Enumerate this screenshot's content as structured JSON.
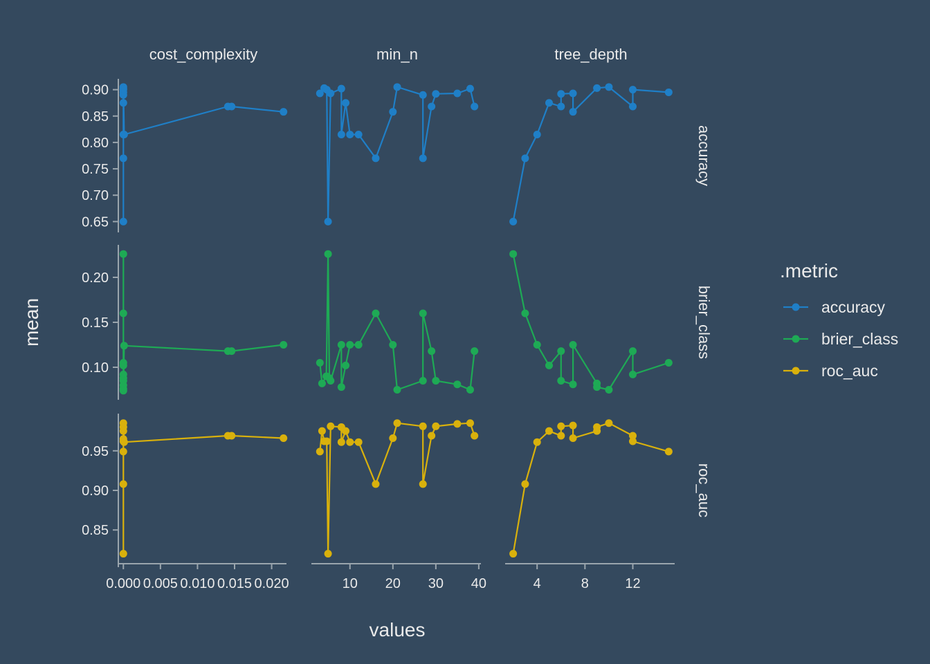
{
  "colors": {
    "background": "#34495e",
    "axis": "#9aa5ad",
    "text": "#eaeaea",
    "accuracy": "#1f7fc7",
    "brier_class": "#1eaa55",
    "roc_auc": "#d9b10c"
  },
  "chart_data": {
    "type": "line",
    "xlabel": "values",
    "ylabel": "mean",
    "legend": {
      "title": ".metric",
      "position": "right",
      "entries": [
        "accuracy",
        "brier_class",
        "roc_auc"
      ]
    },
    "columns": [
      {
        "name": "cost_complexity",
        "xlim": [
          -0.0004,
          0.022
        ],
        "ticks": [
          0,
          0.005,
          0.01,
          0.015,
          0.02
        ],
        "tick_labels": [
          "0.000",
          "0.005",
          "0.010",
          "0.015",
          "0.020"
        ]
      },
      {
        "name": "min_n",
        "xlim": [
          1.5,
          40.5
        ],
        "ticks": [
          10,
          20,
          30,
          40
        ],
        "tick_labels": [
          "10",
          "20",
          "30",
          "40"
        ]
      },
      {
        "name": "tree_depth",
        "xlim": [
          1.5,
          15.5
        ],
        "ticks": [
          4,
          8,
          12
        ],
        "tick_labels": [
          "4",
          "8",
          "12"
        ]
      }
    ],
    "rows": [
      {
        "name": "accuracy",
        "ylim": [
          0.64,
          0.91
        ],
        "ticks": [
          0.65,
          0.7,
          0.75,
          0.8,
          0.85,
          0.9
        ],
        "tick_labels": [
          "0.65",
          "0.70",
          "0.75",
          "0.80",
          "0.85",
          "0.90"
        ]
      },
      {
        "name": "brier_class",
        "ylim": [
          0.07,
          0.23
        ],
        "ticks": [
          0.1,
          0.15,
          0.2
        ],
        "tick_labels": [
          "0.10",
          "0.15",
          "0.20"
        ]
      },
      {
        "name": "roc_auc",
        "ylim": [
          0.81,
          0.99
        ],
        "ticks": [
          0.85,
          0.9,
          0.95
        ],
        "tick_labels": [
          "0.85",
          "0.90",
          "0.95"
        ]
      }
    ],
    "series": [
      {
        "name": "accuracy",
        "panels": [
          [
            [
              0,
              0.65
            ],
            [
              0,
              0.77
            ],
            [
              0,
              0.815
            ],
            [
              0,
              0.875
            ],
            [
              0,
              0.89
            ],
            [
              0,
              0.895
            ],
            [
              0,
              0.9
            ],
            [
              0,
              0.902
            ],
            [
              0,
              0.905
            ],
            [
              0.0001,
              0.815
            ],
            [
              0.0141,
              0.868
            ],
            [
              0.0146,
              0.868
            ],
            [
              0.0216,
              0.858
            ]
          ],
          [
            [
              3,
              0.893
            ],
            [
              4,
              0.903
            ],
            [
              4.6,
              0.9
            ],
            [
              4.9,
              0.65
            ],
            [
              5.5,
              0.893
            ],
            [
              8,
              0.902
            ],
            [
              8,
              0.815
            ],
            [
              9,
              0.875
            ],
            [
              10,
              0.815
            ],
            [
              12,
              0.815
            ],
            [
              16,
              0.77
            ],
            [
              20,
              0.858
            ],
            [
              21,
              0.905
            ],
            [
              27,
              0.89
            ],
            [
              27,
              0.77
            ],
            [
              29,
              0.868
            ],
            [
              30,
              0.892
            ],
            [
              35,
              0.893
            ],
            [
              38,
              0.902
            ],
            [
              39,
              0.868
            ]
          ],
          [
            [
              2,
              0.65
            ],
            [
              3,
              0.77
            ],
            [
              4,
              0.815
            ],
            [
              5,
              0.875
            ],
            [
              6,
              0.868
            ],
            [
              6,
              0.892
            ],
            [
              7,
              0.893
            ],
            [
              7,
              0.858
            ],
            [
              9,
              0.903
            ],
            [
              10,
              0.905
            ],
            [
              12,
              0.868
            ],
            [
              12,
              0.9
            ],
            [
              15,
              0.895
            ]
          ]
        ]
      },
      {
        "name": "brier_class",
        "panels": [
          [
            [
              0,
              0.226
            ],
            [
              0,
              0.16
            ],
            [
              0,
              0.105
            ],
            [
              0,
              0.102
            ],
            [
              0,
              0.092
            ],
            [
              0,
              0.088
            ],
            [
              0,
              0.085
            ],
            [
              0,
              0.08
            ],
            [
              0,
              0.076
            ],
            [
              0,
              0.074
            ],
            [
              0.0001,
              0.124
            ],
            [
              0.0141,
              0.118
            ],
            [
              0.0146,
              0.118
            ],
            [
              0.0216,
              0.125
            ]
          ],
          [
            [
              3,
              0.105
            ],
            [
              3.5,
              0.082
            ],
            [
              4.5,
              0.09
            ],
            [
              4.9,
              0.226
            ],
            [
              5.2,
              0.088
            ],
            [
              5.5,
              0.085
            ],
            [
              8,
              0.125
            ],
            [
              8,
              0.078
            ],
            [
              9,
              0.102
            ],
            [
              10,
              0.125
            ],
            [
              12,
              0.125
            ],
            [
              16,
              0.16
            ],
            [
              20,
              0.125
            ],
            [
              21,
              0.075
            ],
            [
              27,
              0.085
            ],
            [
              27,
              0.16
            ],
            [
              29,
              0.118
            ],
            [
              30,
              0.085
            ],
            [
              35,
              0.081
            ],
            [
              38,
              0.075
            ],
            [
              39,
              0.118
            ]
          ],
          [
            [
              2,
              0.226
            ],
            [
              3,
              0.16
            ],
            [
              4,
              0.125
            ],
            [
              5,
              0.102
            ],
            [
              6,
              0.118
            ],
            [
              6,
              0.085
            ],
            [
              7,
              0.081
            ],
            [
              7,
              0.125
            ],
            [
              9,
              0.082
            ],
            [
              9,
              0.078
            ],
            [
              10,
              0.075
            ],
            [
              12,
              0.118
            ],
            [
              12,
              0.092
            ],
            [
              15,
              0.105
            ]
          ]
        ]
      },
      {
        "name": "roc_auc",
        "panels": [
          [
            [
              0,
              0.82
            ],
            [
              0,
              0.908
            ],
            [
              0,
              0.949
            ],
            [
              0,
              0.962
            ],
            [
              0,
              0.965
            ],
            [
              0,
              0.975
            ],
            [
              0,
              0.98
            ],
            [
              0,
              0.985
            ],
            [
              0.0001,
              0.961
            ],
            [
              0.0141,
              0.969
            ],
            [
              0.0146,
              0.969
            ],
            [
              0.0216,
              0.966
            ]
          ],
          [
            [
              3,
              0.949
            ],
            [
              3.5,
              0.975
            ],
            [
              4,
              0.962
            ],
            [
              4.6,
              0.962
            ],
            [
              4.9,
              0.82
            ],
            [
              5.5,
              0.981
            ],
            [
              8,
              0.98
            ],
            [
              8,
              0.961
            ],
            [
              9,
              0.975
            ],
            [
              10,
              0.961
            ],
            [
              12,
              0.961
            ],
            [
              16,
              0.908
            ],
            [
              20,
              0.966
            ],
            [
              21,
              0.985
            ],
            [
              27,
              0.981
            ],
            [
              27,
              0.908
            ],
            [
              29,
              0.969
            ],
            [
              30,
              0.981
            ],
            [
              35,
              0.984
            ],
            [
              38,
              0.985
            ],
            [
              39,
              0.969
            ]
          ],
          [
            [
              2,
              0.82
            ],
            [
              3,
              0.908
            ],
            [
              4,
              0.961
            ],
            [
              5,
              0.975
            ],
            [
              6,
              0.969
            ],
            [
              6,
              0.981
            ],
            [
              7,
              0.982
            ],
            [
              7,
              0.966
            ],
            [
              9,
              0.975
            ],
            [
              9,
              0.98
            ],
            [
              10,
              0.985
            ],
            [
              12,
              0.969
            ],
            [
              12,
              0.962
            ],
            [
              15,
              0.949
            ]
          ]
        ]
      }
    ]
  }
}
